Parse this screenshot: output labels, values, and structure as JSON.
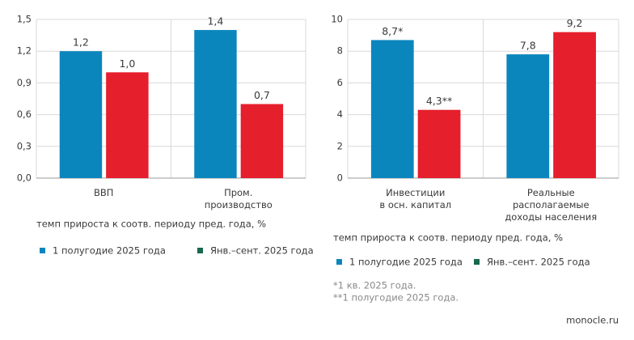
{
  "chart_data": [
    {
      "type": "bar",
      "categories": [
        "ВВП",
        "Пром.\nпроизводство"
      ],
      "series": [
        {
          "name": "1 полугодие 2025 года",
          "color": "#0b86bd",
          "legend_color": "#0b86bd",
          "values": [
            1.2,
            1.4
          ],
          "value_labels": [
            "1,2",
            "1,4"
          ]
        },
        {
          "name": "Янв.–сент. 2025 года",
          "color": "#e51f2b",
          "legend_color": "#17694c",
          "values": [
            1.0,
            0.7
          ],
          "value_labels": [
            "1,0",
            "0,7"
          ]
        }
      ],
      "ylim": [
        0,
        1.5
      ],
      "yticks": [
        {
          "value": 0,
          "label": "0,0"
        },
        {
          "value": 0.3,
          "label": "0,3"
        },
        {
          "value": 0.6,
          "label": "0,6"
        },
        {
          "value": 0.9,
          "label": "0,9"
        },
        {
          "value": 1.2,
          "label": "1,2"
        },
        {
          "value": 1.5,
          "label": "1,5"
        }
      ],
      "grid": true,
      "y_label": "темп прироста к соотв. периоду пред. года, %"
    },
    {
      "type": "bar",
      "categories": [
        "Инвестиции\nв осн. капитал",
        "Реальные\nрасполагаемые\nдоходы населения"
      ],
      "series": [
        {
          "name": "1 полугодие 2025 года",
          "color": "#0b86bd",
          "legend_color": "#0b86bd",
          "values": [
            8.7,
            7.8
          ],
          "value_labels": [
            "8,7*",
            "7,8"
          ]
        },
        {
          "name": "Янв.–сент. 2025 года",
          "color": "#e51f2b",
          "legend_color": "#17694c",
          "values": [
            4.3,
            9.2
          ],
          "value_labels": [
            "4,3**",
            "9,2"
          ]
        }
      ],
      "ylim": [
        0,
        10
      ],
      "yticks": [
        0,
        2,
        4,
        6,
        8,
        10
      ],
      "grid": true,
      "y_label": "темп прироста к соотв. периоду пред. года, %",
      "footnotes": [
        "*1 кв. 2025 года.",
        "**1 полугодие 2025 года."
      ]
    }
  ],
  "source": "monocle.ru"
}
